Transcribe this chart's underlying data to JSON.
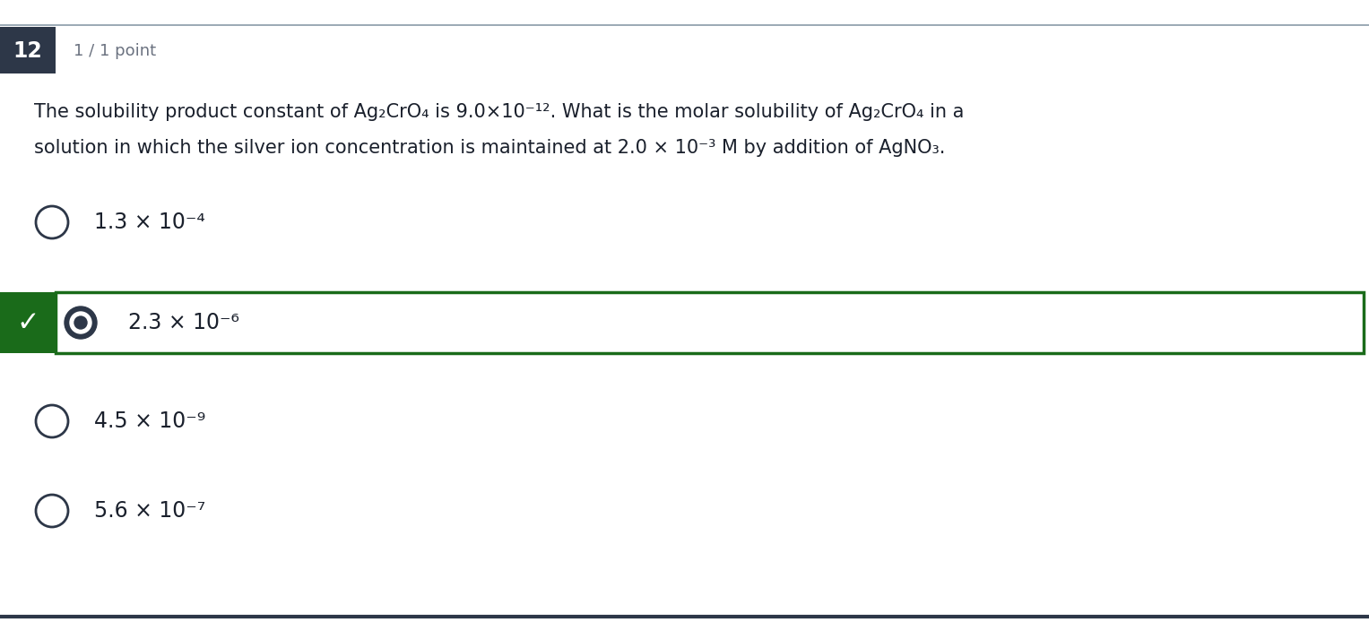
{
  "bg_color": "#ffffff",
  "top_border_color": "#8a9ba8",
  "bottom_border_color": "#2d3748",
  "question_number": "12",
  "question_num_bg": "#2d3748",
  "question_num_color": "#ffffff",
  "point_label": "1 / 1 point",
  "point_label_color": "#6b7280",
  "question_line1": "The solubility product constant of Ag₂CrO₄ is 9.0×10⁻¹². What is the molar solubility of Ag₂CrO₄ in a",
  "question_line2": "solution in which the silver ion concentration is maintained at 2.0 × 10⁻³ M by addition of AgNO₃.",
  "text_color": "#1a202c",
  "options": [
    "1.3 × 10⁻⁴",
    "2.3 × 10⁻⁶",
    "4.5 × 10⁻⁹",
    "5.6 × 10⁻⁷"
  ],
  "correct_index": 1,
  "correct_bg": "#ffffff",
  "correct_border": "#1a6b1a",
  "correct_check_bg": "#1a6b1a",
  "correct_check_color": "#ffffff",
  "radio_selected_color": "#2d3748",
  "radio_unselected_color": "#2d3748"
}
